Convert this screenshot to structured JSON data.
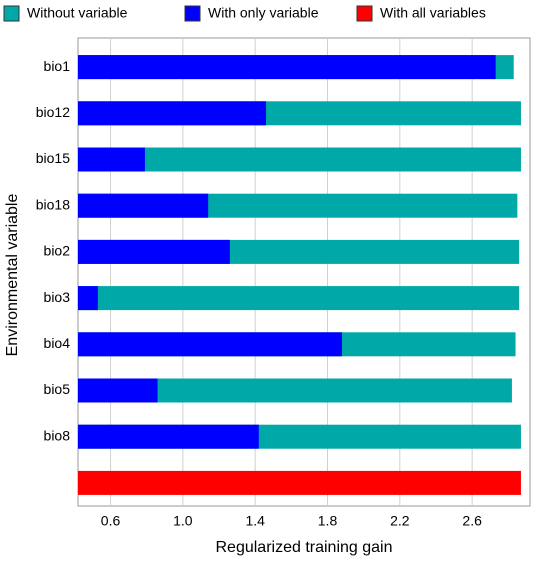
{
  "chart_data": {
    "type": "bar",
    "orientation": "horizontal",
    "xlabel": "Regularized training gain",
    "ylabel": "Environmental variable",
    "categories": [
      "bio1",
      "bio12",
      "bio15",
      "bio18",
      "bio2",
      "bio3",
      "bio4",
      "bio5",
      "bio8",
      null
    ],
    "series": [
      {
        "name": "Without variable",
        "color": "#00a8a8",
        "values": [
          2.83,
          2.87,
          2.87,
          2.85,
          2.86,
          2.86,
          2.84,
          2.82,
          2.87,
          null
        ]
      },
      {
        "name": "With only variable",
        "color": "#0000ff",
        "values": [
          2.73,
          1.46,
          0.79,
          1.14,
          1.26,
          0.53,
          1.88,
          0.86,
          1.42,
          null
        ]
      },
      {
        "name": "With all variables",
        "color": "#ff0000",
        "values": [
          null,
          null,
          null,
          null,
          null,
          null,
          null,
          null,
          null,
          2.87
        ]
      }
    ],
    "xlim": [
      0.42,
      2.92
    ],
    "xticks": [
      0.6,
      {
        "value": 1,
        "label": "1.0"
      },
      1.4,
      1.8,
      2.2,
      2.6
    ],
    "grid": true,
    "legend": "top"
  }
}
